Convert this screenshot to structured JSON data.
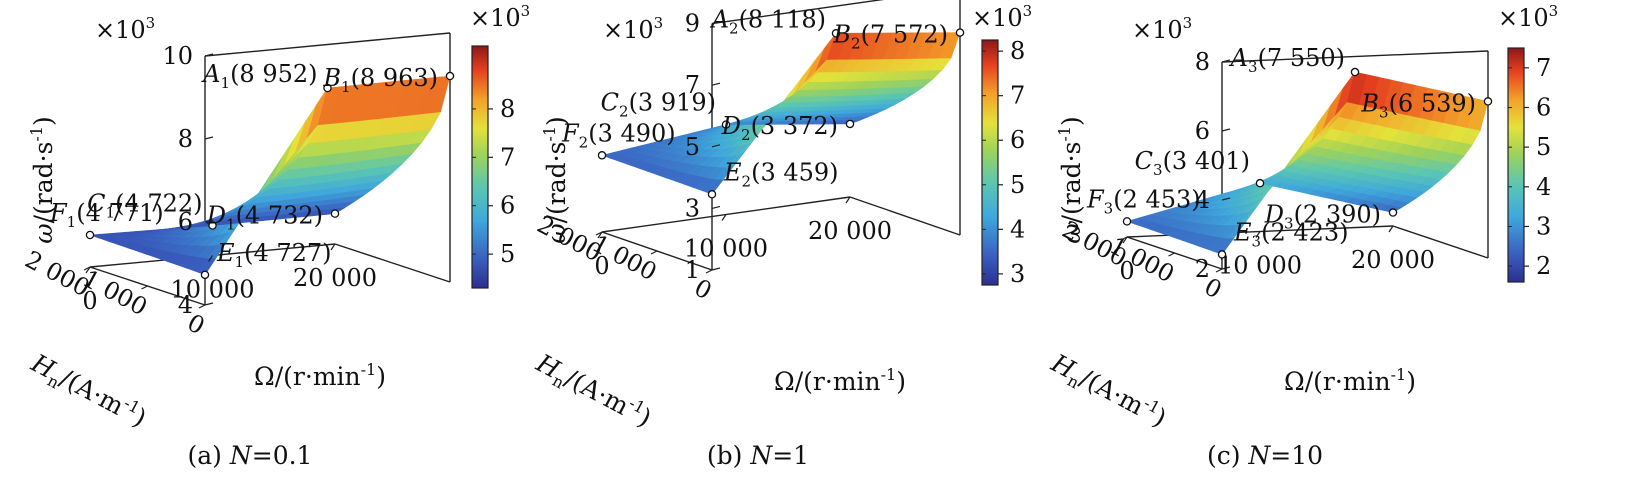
{
  "axis_labels": {
    "y": "ω/(rad·s",
    "y_exp": "-1",
    "y_close": ")",
    "omega": "Ω/(r·min",
    "omega_exp": "-1",
    "omega_close": ")",
    "h_main": "H",
    "h_sub": "n",
    "h_rest": "/(A·m",
    "h_exp": "-1",
    "h_close": ")"
  },
  "multiplier": {
    "base": "×10",
    "exp": "3"
  },
  "chart_data": [
    {
      "type": "surface3d",
      "caption": "(a) N=0.1",
      "caption_prefix": "(a)",
      "caption_var": "N",
      "caption_val": "=0.1",
      "n": 0.1,
      "x_label": "Ω/(r·min-1)",
      "x_ticks": [
        "0",
        "10 000",
        "20 000"
      ],
      "depth_label": "Hn/(A·m-1)",
      "depth_ticks": [
        "0",
        "1 000",
        "2 000"
      ],
      "y_label": "ω/(rad·s-1)",
      "y_ticks": [
        "4",
        "6",
        "8",
        "10"
      ],
      "zlim": [
        4,
        10
      ],
      "z_multiplier": "×10^3",
      "colorbar_ticks": [
        "5",
        "6",
        "7",
        "8"
      ],
      "colorbar_range": [
        4.3,
        9.3
      ],
      "points": [
        {
          "id": "A",
          "sub": "1",
          "value": "8 952",
          "omega": 10000,
          "hn": 0,
          "w": 8.952
        },
        {
          "id": "B",
          "sub": "1",
          "value": "8 963",
          "omega": 20000,
          "hn": 0,
          "w": 8.963
        },
        {
          "id": "C",
          "sub": "1",
          "value": "4 722",
          "omega": 10000,
          "hn": 2000,
          "w": 4.722
        },
        {
          "id": "D",
          "sub": "1",
          "value": "4 732",
          "omega": 20000,
          "hn": 2000,
          "w": 4.732
        },
        {
          "id": "E",
          "sub": "1",
          "value": "4 727",
          "omega": 0,
          "hn": 0,
          "w": 4.727
        },
        {
          "id": "F",
          "sub": "1",
          "value": "4 771",
          "omega": 0,
          "hn": 2000,
          "w": 4.771
        }
      ]
    },
    {
      "type": "surface3d",
      "caption": "(b) N=1",
      "caption_prefix": "(b)",
      "caption_var": "N",
      "caption_val": "=1",
      "n": 1,
      "x_label": "Ω/(r·min-1)",
      "x_ticks": [
        "0",
        "10 000",
        "20 000"
      ],
      "depth_label": "Hn/(A·m-1)",
      "depth_ticks": [
        "0",
        "1 000",
        "2 000"
      ],
      "y_label": "ω/(rad·s-1)",
      "y_ticks": [
        "1",
        "3",
        "5",
        "7",
        "9"
      ],
      "zlim": [
        1,
        9
      ],
      "z_multiplier": "×10^3",
      "colorbar_ticks": [
        "3",
        "4",
        "5",
        "6",
        "7",
        "8"
      ],
      "colorbar_range": [
        2.75,
        8.25
      ],
      "points": [
        {
          "id": "A",
          "sub": "2",
          "value": "8 118",
          "omega": 10000,
          "hn": 0,
          "w": 8.118
        },
        {
          "id": "B",
          "sub": "2",
          "value": "7 572",
          "omega": 20000,
          "hn": 0,
          "w": 7.572
        },
        {
          "id": "C",
          "sub": "2",
          "value": "3 919",
          "omega": 10000,
          "hn": 2000,
          "w": 3.919
        },
        {
          "id": "D",
          "sub": "2",
          "value": "3 372",
          "omega": 20000,
          "hn": 2000,
          "w": 3.372
        },
        {
          "id": "E",
          "sub": "2",
          "value": "3 459",
          "omega": 0,
          "hn": 0,
          "w": 3.459
        },
        {
          "id": "F",
          "sub": "2",
          "value": "3 490",
          "omega": 0,
          "hn": 2000,
          "w": 3.49
        }
      ]
    },
    {
      "type": "surface3d",
      "caption": "(c) N=10",
      "caption_prefix": "(c)",
      "caption_var": "N",
      "caption_val": "=10",
      "n": 10,
      "x_label": "Ω/(r·min-1)",
      "x_ticks": [
        "0",
        "10 000",
        "20 000"
      ],
      "depth_label": "Hn/(A·m-1)",
      "depth_ticks": [
        "0",
        "1 000",
        "2 000"
      ],
      "y_label": "ω/(rad·s-1)",
      "y_ticks": [
        "2",
        "4",
        "6",
        "8"
      ],
      "zlim": [
        2,
        8
      ],
      "z_multiplier": "×10^3",
      "colorbar_ticks": [
        "2",
        "3",
        "4",
        "5",
        "6",
        "7"
      ],
      "colorbar_range": [
        1.6,
        7.5
      ],
      "points": [
        {
          "id": "A",
          "sub": "3",
          "value": "7 550",
          "omega": 10000,
          "hn": 0,
          "w": 7.55
        },
        {
          "id": "B",
          "sub": "3",
          "value": "6 539",
          "omega": 20000,
          "hn": 0,
          "w": 6.539
        },
        {
          "id": "C",
          "sub": "3",
          "value": "3 401",
          "omega": 10000,
          "hn": 2000,
          "w": 3.401
        },
        {
          "id": "D",
          "sub": "3",
          "value": "2 390",
          "omega": 20000,
          "hn": 2000,
          "w": 2.39
        },
        {
          "id": "E",
          "sub": "3",
          "value": "2 423",
          "omega": 0,
          "hn": 0,
          "w": 2.423
        },
        {
          "id": "F",
          "sub": "3",
          "value": "2 453",
          "omega": 0,
          "hn": 2000,
          "w": 2.453
        }
      ]
    }
  ]
}
